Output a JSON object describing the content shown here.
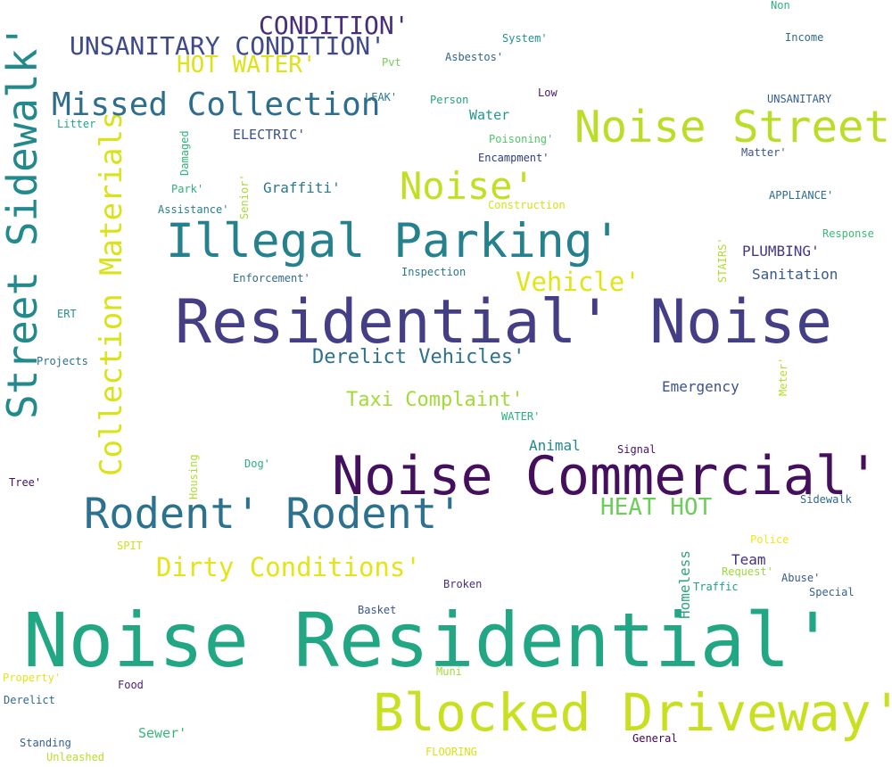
{
  "words": [
    {
      "text": "Noise Residential'",
      "color": "#22a784"
    },
    {
      "text": "Residential' Noise",
      "color": "#433e85"
    },
    {
      "text": "Noise Commercial'",
      "color": "#440f5d"
    },
    {
      "text": "Blocked Driveway'",
      "color": "#c8e020"
    },
    {
      "text": "Street Sidewalk'",
      "color": "#228a8d"
    },
    {
      "text": "Illegal Parking'",
      "color": "#26818e"
    },
    {
      "text": "Noise Street",
      "color": "#bade28"
    },
    {
      "text": "Rodent' Rodent'",
      "color": "#2c728e"
    },
    {
      "text": "Collection Materials",
      "color": "#dae319"
    },
    {
      "text": "Missed Collection",
      "color": "#2e6d8e"
    },
    {
      "text": "Noise'",
      "color": "#c2df23"
    },
    {
      "text": "UNSANITARY CONDITION'",
      "color": "#3e4a89"
    },
    {
      "text": "CONDITION'",
      "color": "#472e7c"
    },
    {
      "text": "HOT WATER'",
      "color": "#dde318"
    },
    {
      "text": "Dirty Conditions'",
      "color": "#e5e419"
    },
    {
      "text": "Vehicle'",
      "color": "#e2e418"
    },
    {
      "text": "HEAT HOT",
      "color": "#6ccd5a"
    },
    {
      "text": "Derelict Vehicles'",
      "color": "#2c718e"
    },
    {
      "text": "Taxi Complaint'",
      "color": "#a2da37"
    },
    {
      "text": "Emergency",
      "color": "#3b528b"
    },
    {
      "text": "Sanitation",
      "color": "#38598c"
    },
    {
      "text": "Graffiti'",
      "color": "#2a778e"
    },
    {
      "text": "PLUMBING'",
      "color": "#453882"
    },
    {
      "text": "Animal",
      "color": "#23888e"
    },
    {
      "text": "Water",
      "color": "#1f998a"
    },
    {
      "text": "Team",
      "color": "#46327e"
    },
    {
      "text": "Homeless",
      "color": "#2ea37d"
    },
    {
      "text": "ELECTRIC'",
      "color": "#3b528b"
    },
    {
      "text": "Sewer'",
      "color": "#35b779"
    },
    {
      "text": "System'",
      "color": "#21918c"
    },
    {
      "text": "Asbestos'",
      "color": "#33638d"
    },
    {
      "text": "Pvt",
      "color": "#75d054"
    },
    {
      "text": "LEAK'",
      "color": "#2a788e"
    },
    {
      "text": "Person",
      "color": "#2ba07f"
    },
    {
      "text": "Low",
      "color": "#481a6c"
    },
    {
      "text": "Non",
      "color": "#2db27d"
    },
    {
      "text": "Income",
      "color": "#31688e"
    },
    {
      "text": "Litter",
      "color": "#22a785"
    },
    {
      "text": "Damaged",
      "color": "#30b47c"
    },
    {
      "text": "Poisoning'",
      "color": "#52c569"
    },
    {
      "text": "Encampment'",
      "color": "#2d3e86"
    },
    {
      "text": "Matter'",
      "color": "#3b528b"
    },
    {
      "text": "UNSANITARY",
      "color": "#355f8d"
    },
    {
      "text": "Park'",
      "color": "#2db27d"
    },
    {
      "text": "Senior'",
      "color": "#a8db34"
    },
    {
      "text": "Assistance'",
      "color": "#277f8e"
    },
    {
      "text": "Construction",
      "color": "#d2e21b"
    },
    {
      "text": "APPLIANCE'",
      "color": "#2f6c8e"
    },
    {
      "text": "Response",
      "color": "#3bbb75"
    },
    {
      "text": "STAIRS'",
      "color": "#b0dd2f"
    },
    {
      "text": "Enforcement'",
      "color": "#2f6b8e"
    },
    {
      "text": "Inspection",
      "color": "#2a768e"
    },
    {
      "text": "ERT",
      "color": "#21918c"
    },
    {
      "text": "Projects",
      "color": "#2c718e"
    },
    {
      "text": "Meter'",
      "color": "#b5de2b"
    },
    {
      "text": "WATER'",
      "color": "#2ab07f"
    },
    {
      "text": "Signal",
      "color": "#471365"
    },
    {
      "text": "Housing",
      "color": "#addc30"
    },
    {
      "text": "Dog'",
      "color": "#29af7f"
    },
    {
      "text": "Tree'",
      "color": "#471063"
    },
    {
      "text": "Sidewalk",
      "color": "#31688e"
    },
    {
      "text": "Police",
      "color": "#f1e51d"
    },
    {
      "text": "SPIT",
      "color": "#cde11d"
    },
    {
      "text": "Request'",
      "color": "#9bd93c"
    },
    {
      "text": "Traffic",
      "color": "#1fa088"
    },
    {
      "text": "Abuse'",
      "color": "#38598c"
    },
    {
      "text": "Special",
      "color": "#33638d"
    },
    {
      "text": "Broken",
      "color": "#472f7d"
    },
    {
      "text": "Basket",
      "color": "#3a548c"
    },
    {
      "text": "Muni",
      "color": "#a5db36"
    },
    {
      "text": "Property'",
      "color": "#e5e419"
    },
    {
      "text": "Food",
      "color": "#481f70"
    },
    {
      "text": "Derelict",
      "color": "#306a8e"
    },
    {
      "text": "Standing",
      "color": "#34608d"
    },
    {
      "text": "Unleashed",
      "color": "#b8de29"
    },
    {
      "text": "FLOORING",
      "color": "#d8e219"
    },
    {
      "text": "General",
      "color": "#440154"
    }
  ]
}
